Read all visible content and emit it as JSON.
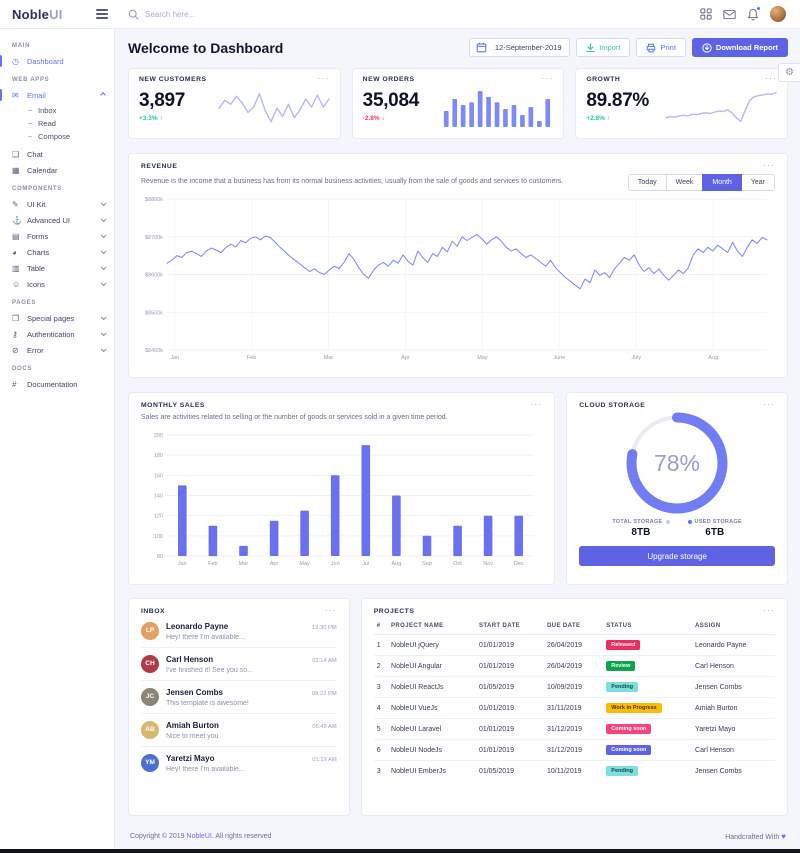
{
  "brand": {
    "primary": "Noble",
    "secondary": "UI"
  },
  "topbar": {
    "search_placeholder": "Search here..."
  },
  "menu_dots": "···",
  "sidebar": {
    "sections": [
      {
        "title": "MAIN"
      },
      {
        "title": "WEB APPS"
      },
      {
        "title": "COMPONENTS"
      },
      {
        "title": "PAGES"
      },
      {
        "title": "DOCS"
      }
    ],
    "items": {
      "dashboard": "Dashboard",
      "email": "Email",
      "inbox": "Inbox",
      "read": "Read",
      "compose": "Compose",
      "chat": "Chat",
      "calendar": "Calendar",
      "ui_kit": "UI Kit",
      "advanced_ui": "Advanced UI",
      "forms": "Forms",
      "charts": "Charts",
      "table": "Table",
      "icons": "Icons",
      "special_pages": "Special pages",
      "authentication": "Authentication",
      "error": "Error",
      "documentation": "Documentation"
    },
    "glyphs": {
      "dashboard": "◷",
      "email": "✉",
      "chat": "❑",
      "calendar": "▦",
      "ui_kit": "✎",
      "advanced_ui": "⚓",
      "forms": "▤",
      "charts": "◕",
      "table": "▥",
      "icons": "☺",
      "special_pages": "❐",
      "authentication": "⚷",
      "error": "⊘",
      "documentation": "#"
    }
  },
  "page": {
    "title": "Welcome to Dashboard",
    "date_value": "12-September-2019",
    "import_label": "Import",
    "print_label": "Print",
    "download_label": "Download Report"
  },
  "stats": [
    {
      "title": "NEW CUSTOMERS",
      "value": "3,897",
      "delta": "+3.3%",
      "arrow": "↑"
    },
    {
      "title": "NEW ORDERS",
      "value": "35,084",
      "delta": "-2.8%",
      "arrow": "↓"
    },
    {
      "title": "GROWTH",
      "value": "89.87%",
      "delta": "+2.8%",
      "arrow": "↑"
    }
  ],
  "revenue": {
    "title": "REVENUE",
    "description": "Revenue is the income that a business has from its normal business activities, usually from the sale of goods and services to customers.",
    "periods": [
      {
        "label": "Today",
        "active": false
      },
      {
        "label": "Week",
        "active": false
      },
      {
        "label": "Month",
        "active": true
      },
      {
        "label": "Year",
        "active": false
      }
    ]
  },
  "monthly_sales": {
    "title": "MONTHLY SALES",
    "description": "Sales are activities related to selling or the number of goods or services sold in a given time period."
  },
  "cloud_storage": {
    "title": "CLOUD STORAGE",
    "percent_label": "78%",
    "total_label": "TOTAL STORAGE",
    "total_value": "8TB",
    "total_dot": "#c9cfe6",
    "used_label": "USED STORAGE",
    "used_value": "6TB",
    "used_dot": "#6571ff",
    "button_label": "Upgrade storage"
  },
  "inbox": {
    "title": "INBOX",
    "messages": [
      {
        "name": "Leonardo Payne",
        "preview": "Hey! there I'm available...",
        "time": "12:30 PM",
        "initials": "LP",
        "avatar_color": "#e2a065"
      },
      {
        "name": "Carl Henson",
        "preview": "I've finished it! See you so...",
        "time": "02:14 AM",
        "initials": "CH",
        "avatar_color": "#b03a48"
      },
      {
        "name": "Jensen Combs",
        "preview": "This template is awesome!",
        "time": "08:22 PM",
        "initials": "JC",
        "avatar_color": "#8c8577"
      },
      {
        "name": "Amiah Burton",
        "preview": "Nice to meet you",
        "time": "05:49 AM",
        "initials": "AB",
        "avatar_color": "#d8b76e"
      },
      {
        "name": "Yaretzi Mayo",
        "preview": "Hey! there I'm available...",
        "time": "01:19 AM",
        "initials": "YM",
        "avatar_color": "#4d6fd0"
      }
    ]
  },
  "projects": {
    "title": "PROJECTS",
    "headers": [
      "#",
      "PROJECT NAME",
      "START DATE",
      "DUE DATE",
      "STATUS",
      "ASSIGN"
    ],
    "rows": [
      {
        "num": "1",
        "name": "NobleUI jQuery",
        "start": "01/01/2019",
        "due": "26/04/2019",
        "status": "Released",
        "badge_bg": "#ee2c5d",
        "badge_fg": "#ffffff",
        "assign": "Leonardo Payne"
      },
      {
        "num": "2",
        "name": "NobleUI Angular",
        "start": "01/01/2019",
        "due": "26/04/2019",
        "status": "Review",
        "badge_bg": "#0aa74f",
        "badge_fg": "#ffffff",
        "assign": "Carl Henson"
      },
      {
        "num": "3",
        "name": "NobleUI ReactJs",
        "start": "01/05/2019",
        "due": "10/09/2019",
        "status": "Pending",
        "badge_bg": "#7be0dc",
        "badge_fg": "#15474a",
        "assign": "Jensen Combs"
      },
      {
        "num": "4",
        "name": "NobleUI VueJs",
        "start": "01/01/2019",
        "due": "31/11/2019",
        "status": "Work in Progress",
        "badge_bg": "#fbbc06",
        "badge_fg": "#4d3a05",
        "assign": "Amiah Burton"
      },
      {
        "num": "5",
        "name": "NobleUI Laravel",
        "start": "01/01/2019",
        "due": "31/12/2019",
        "status": "Coming soon",
        "badge_bg": "#f8437c",
        "badge_fg": "#ffffff",
        "assign": "Yaretzi Mayo"
      },
      {
        "num": "6",
        "name": "NobleUI NodeJs",
        "start": "01/01/2019",
        "due": "31/12/2019",
        "status": "Coming soon",
        "badge_bg": "#5e63ee",
        "badge_fg": "#ffffff",
        "assign": "Carl Henson"
      },
      {
        "num": "3",
        "name": "NobleUI EmberJs",
        "start": "01/05/2019",
        "due": "10/11/2019",
        "status": "Pending",
        "badge_bg": "#7be0dc",
        "badge_fg": "#15474a",
        "assign": "Jensen Combs"
      }
    ]
  },
  "footer": {
    "left_prefix": "Copyright © 2019 ",
    "brand": "NobleUI",
    "left_suffix": ". All rights reserved",
    "right": "Handcrafted With",
    "heart": "♥"
  },
  "colors": {
    "primary": "#6571ff",
    "purple": "#727cf5",
    "success": "#27c98c",
    "danger": "#ff3366"
  },
  "chart_data": [
    {
      "id": "spark-customers",
      "type": "line",
      "color": "#b4b9ef",
      "stroke": 1.4,
      "ylim": [
        22,
        82
      ],
      "values": [
        50,
        62,
        56,
        68,
        58,
        44,
        52,
        72,
        46,
        30,
        50,
        38,
        56,
        36,
        48,
        64,
        52,
        70,
        52,
        64
      ]
    },
    {
      "id": "spark-orders",
      "type": "bar",
      "color": "#7f8af7",
      "bar_frac": 0.55,
      "ylim": [
        0,
        100
      ],
      "values": [
        40,
        70,
        55,
        62,
        90,
        75,
        62,
        45,
        55,
        30,
        50,
        15,
        70
      ]
    },
    {
      "id": "spark-growth",
      "type": "line",
      "color": "#b4b9ef",
      "stroke": 1.4,
      "ylim": [
        15,
        80
      ],
      "values": [
        30,
        32,
        31,
        33,
        34,
        33,
        36,
        35,
        37,
        38,
        37,
        39,
        41,
        40,
        43,
        38,
        30,
        24,
        42,
        58,
        64,
        66,
        67,
        69,
        68,
        71
      ]
    },
    {
      "id": "revenue",
      "type": "line",
      "color": "#7a85f6",
      "stroke": 1,
      "title": "Revenue by month ($k)",
      "ylim": [
        8400,
        8800
      ],
      "yticks": [
        "$8800k",
        "$8700k",
        "$8600k",
        "$8500k",
        "$8400k"
      ],
      "xticks": [
        "Jan",
        "Feb",
        "Mar",
        "Apr",
        "May",
        "June",
        "July",
        "Aug"
      ],
      "xgrid": true,
      "xoff": 0.1,
      "xdiv": 7.8,
      "values": [
        8630,
        8638,
        8650,
        8645,
        8658,
        8662,
        8655,
        8648,
        8662,
        8670,
        8665,
        8658,
        8672,
        8680,
        8673,
        8690,
        8684,
        8696,
        8700,
        8692,
        8702,
        8698,
        8685,
        8672,
        8660,
        8648,
        8638,
        8628,
        8618,
        8608,
        8615,
        8605,
        8600,
        8612,
        8622,
        8616,
        8632,
        8655,
        8640,
        8618,
        8600,
        8590,
        8612,
        8625,
        8632,
        8622,
        8638,
        8630,
        8652,
        8635,
        8625,
        8662,
        8645,
        8632,
        8655,
        8648,
        8672,
        8660,
        8688,
        8675,
        8700,
        8690,
        8698,
        8706,
        8695,
        8680,
        8692,
        8700,
        8688,
        8672,
        8662,
        8668,
        8655,
        8645,
        8652,
        8642,
        8632,
        8622,
        8638,
        8618,
        8605,
        8592,
        8582,
        8572,
        8562,
        8588,
        8578,
        8612,
        8598,
        8605,
        8592,
        8615,
        8630,
        8645,
        8638,
        8652,
        8625,
        8608,
        8618,
        8602,
        8615,
        8598,
        8585,
        8598,
        8612,
        8602,
        8618,
        8652,
        8668,
        8658,
        8672,
        8662,
        8678,
        8668,
        8658,
        8685,
        8662,
        8648,
        8672,
        8692,
        8682,
        8698,
        8692
      ]
    },
    {
      "id": "monthly",
      "type": "bar",
      "color": "#6a70f0",
      "bar_frac": 0.28,
      "title": "Monthly sales (units)",
      "ylim": [
        80,
        200
      ],
      "yticks": [
        "200",
        "180",
        "160",
        "140",
        "120",
        "100",
        "80"
      ],
      "xticks": [
        "Jan",
        "Feb",
        "Mar",
        "Apr",
        "May",
        "Jun",
        "Jul",
        "Aug",
        "Sep",
        "Oct",
        "Nov",
        "Dec"
      ],
      "values": [
        150,
        110,
        90,
        115,
        125,
        160,
        190,
        140,
        100,
        110,
        120,
        120
      ]
    },
    {
      "id": "storage",
      "type": "donut",
      "percent": 78,
      "label": "78%",
      "color": "#727cf5",
      "track_color": "#e9ebf4",
      "label_color": "#949ed2"
    }
  ]
}
